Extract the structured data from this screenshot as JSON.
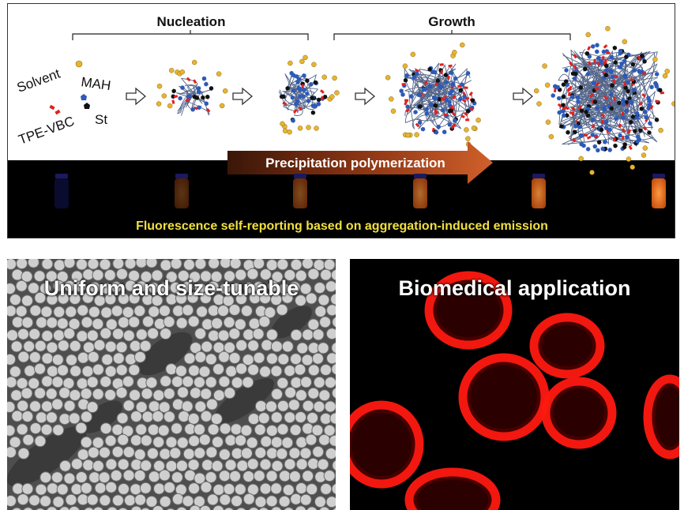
{
  "stages": {
    "nucleation": "Nucleation",
    "growth": "Growth"
  },
  "legend": {
    "solvent": "Solvent",
    "mah": "MAH",
    "tpe_vbc": "TPE-VBC",
    "st": "St"
  },
  "arrow_label": "Precipitation polymerization",
  "fluorescence_caption": "Fluorescence self-reporting based on aggregation-induced emission",
  "sem_title": "Uniform and size-tunable",
  "bio_title": "Biomedical application",
  "colors": {
    "solvent": "#e8b430",
    "mah": "#2d5ab8",
    "st": "#111111",
    "tpe_vbc": "#e02020",
    "arrow": "#b84a20",
    "caption": "#f0e040",
    "tube_glow": "#f07a20",
    "cell": "#ff1a10"
  },
  "vial_brightness": [
    0.1,
    0.35,
    0.5,
    0.7,
    0.85,
    1.0
  ]
}
